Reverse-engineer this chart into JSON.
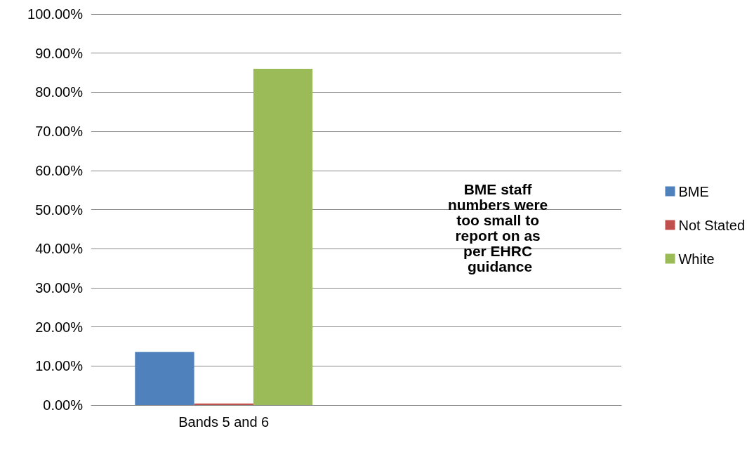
{
  "chart_data": {
    "type": "bar",
    "categories": [
      "Bands 5 and 6",
      null
    ],
    "series": [
      {
        "name": "BME",
        "color": "#4f81bd",
        "values": [
          13.6,
          null
        ]
      },
      {
        "name": "Not Stated",
        "color": "#c0504d",
        "values": [
          0.4,
          null
        ]
      },
      {
        "name": "White",
        "color": "#9bbb59",
        "values": [
          86.0,
          null
        ]
      }
    ],
    "ylim": [
      0,
      100
    ],
    "yticks": [
      {
        "value": 0,
        "label": "0.00%"
      },
      {
        "value": 10,
        "label": "10.00%"
      },
      {
        "value": 20,
        "label": "20.00%"
      },
      {
        "value": 30,
        "label": "30.00%"
      },
      {
        "value": 40,
        "label": "40.00%"
      },
      {
        "value": 50,
        "label": "50.00%"
      },
      {
        "value": 60,
        "label": "60.00%"
      },
      {
        "value": 70,
        "label": "70.00%"
      },
      {
        "value": 80,
        "label": "80.00%"
      },
      {
        "value": 90,
        "label": "90.00%"
      },
      {
        "value": 100,
        "label": "100.00%"
      }
    ],
    "grid": "y",
    "legend": "right",
    "annotations": [
      "BME staff numbers were too small to report on as per EHRC guidance"
    ]
  }
}
